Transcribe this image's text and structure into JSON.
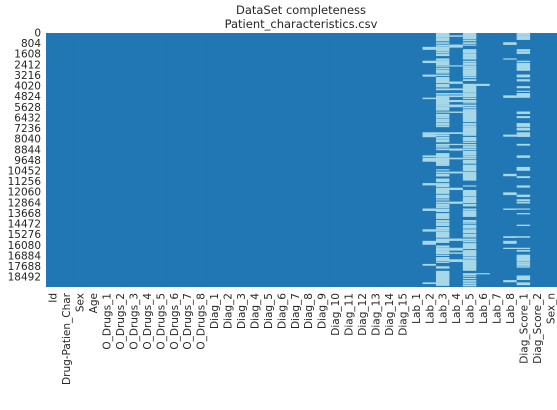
{
  "chart_data": {
    "type": "heatmap",
    "title_lines": [
      "DataSet completeness",
      "Patient_characteristics.csv"
    ],
    "xlabel": "",
    "ylabel": "",
    "y_tick_labels": [
      "0",
      "804",
      "1608",
      "2412",
      "3216",
      "4020",
      "4824",
      "5628",
      "6432",
      "7236",
      "8040",
      "8844",
      "9648",
      "10452",
      "11256",
      "12060",
      "12864",
      "13668",
      "14472",
      "15276",
      "16080",
      "16884",
      "17688",
      "18492"
    ],
    "y_range": [
      0,
      19240
    ],
    "columns": [
      "Id",
      "Drug-Patien_Char",
      "Sex",
      "Age",
      "O_Drugs_1",
      "O_Drugs_2",
      "O_Drugs_3",
      "O_Drugs_4",
      "O_Drugs_5",
      "O_Drugs_6",
      "O_Drugs_7",
      "O_Drugs_8",
      "Diag_1",
      "Diag_2",
      "Diag_3",
      "Diag_4",
      "Diag_5",
      "Diag_6",
      "Diag_7",
      "Diag_8",
      "Diag_9",
      "Diag_10",
      "Diag_11",
      "Diag_12",
      "Diag_13",
      "Diag_14",
      "Diag_15",
      "Lab_1",
      "Lab_2",
      "Lab_3",
      "Lab_4",
      "Lab_5",
      "Lab_6",
      "Lab_7",
      "Lab_8",
      "Diag_Score_1",
      "Diag_Score_2",
      "Sex_n"
    ],
    "x_tick_labels": [
      "Id",
      "Drug-Patien_Char",
      "Sex",
      "Age",
      "O_Drugs_1",
      "O_Drugs_2",
      "O_Drugs_3",
      "O_Drugs_4",
      "O_Drugs_5",
      "O_Drugs_6",
      "O_Drugs_7",
      "O_Drugs_8",
      "Diag_1",
      "Diag_2",
      "Diag_3",
      "Diag_4",
      "Diag_5",
      "Diag_6",
      "Diag_7",
      "Diag_8",
      "Diag_9",
      "Diag_10",
      "Diag_11",
      "Diag_12",
      "Diag_13",
      "Diag_14",
      "Diag_15",
      "Lab_1",
      "Lab_2",
      "Lab_3",
      "Lab_4",
      "Lab_5",
      "Lab_6",
      "Lab_7",
      "Lab_8",
      "Diag_Score_1",
      "Diag_Score_2",
      "Sex_n"
    ],
    "missing_fraction": [
      0,
      0,
      0,
      0,
      0,
      0,
      0,
      0,
      0,
      0,
      0,
      0,
      0,
      0,
      0,
      0,
      0,
      0,
      0,
      0,
      0,
      0,
      0,
      0,
      0,
      0,
      0,
      0,
      0.2,
      0.9,
      0.15,
      0.95,
      0.01,
      0,
      0.08,
      0.45,
      0,
      0
    ],
    "colors": {
      "present": "#2077b4",
      "missing": "#a6d8e7"
    },
    "grid": false,
    "legend": "none"
  }
}
